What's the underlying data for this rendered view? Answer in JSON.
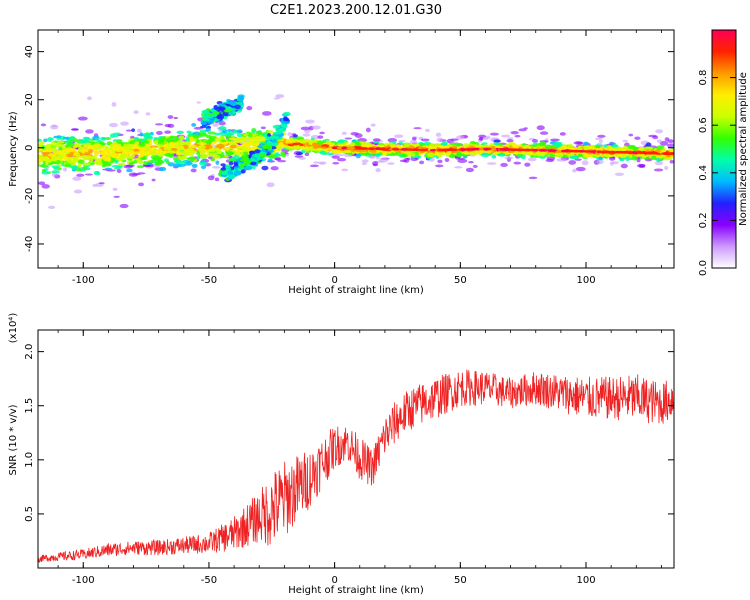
{
  "figure": {
    "title": "C2E1.2023.200.12.01.G30"
  },
  "chart_data": [
    {
      "type": "heatmap",
      "xlabel": "Height of straight line (km)",
      "ylabel": "Frequency (Hz)",
      "xlim": [
        -118,
        135
      ],
      "ylim": [
        -50,
        49
      ],
      "x_ticks": [
        -100,
        -50,
        0,
        50,
        100
      ],
      "x_tick_labels": [
        "-100",
        "-50",
        "0",
        "50",
        "100"
      ],
      "y_ticks": [
        -40,
        -20,
        0,
        20,
        40
      ],
      "y_tick_labels": [
        "-40",
        "-20",
        "0",
        "20",
        "40"
      ],
      "grid": false,
      "colorbar": {
        "label": "Normalized spectral amplitude",
        "range": [
          0,
          1
        ],
        "ticks": [
          0.0,
          0.2,
          0.4,
          0.6,
          0.8
        ],
        "tick_labels": [
          "0.0",
          "0.2",
          "0.4",
          "0.6",
          "0.8"
        ],
        "colors": [
          "#ffffff",
          "#cc99ff",
          "#8800ff",
          "#2222ff",
          "#00bbff",
          "#00ffaa",
          "#33ff00",
          "#ccff00",
          "#ffee00",
          "#ff9900",
          "#ff2200",
          "#ff0055"
        ]
      },
      "ridge": {
        "description_points_x": [
          -118,
          -100,
          -80,
          -60,
          -40,
          -20,
          0,
          20,
          40,
          60,
          80,
          100,
          120,
          135
        ],
        "center_freq": [
          -3,
          -2.5,
          -1.5,
          0,
          1,
          2,
          0,
          -0.5,
          -1,
          -0.5,
          -1,
          -1.5,
          -2,
          -2.5
        ]
      },
      "branches": [
        {
          "x": [
            -52,
            -45,
            -40,
            -37
          ],
          "y": [
            12,
            15,
            17,
            19
          ]
        },
        {
          "x": [
            -45,
            -38,
            -30,
            -24,
            -19
          ],
          "y": [
            -11,
            -8,
            -3,
            3,
            12
          ]
        }
      ]
    },
    {
      "type": "line",
      "xlabel": "Height of straight line (km)",
      "ylabel": "SNR (10 * v/v)",
      "y_multiplier_label": "(x10⁴)",
      "xlim": [
        -118,
        135
      ],
      "ylim": [
        0.0,
        2.2
      ],
      "x_ticks": [
        -100,
        -50,
        0,
        50,
        100
      ],
      "x_tick_labels": [
        "-100",
        "-50",
        "0",
        "50",
        "100"
      ],
      "y_ticks": [
        0.5,
        1.0,
        1.5,
        2.0
      ],
      "y_tick_labels": [
        "0.5",
        "1.0",
        "1.5",
        "2.0"
      ],
      "grid": false,
      "series": [
        {
          "color": "#ee2222",
          "x": [
            -118,
            -110,
            -100,
            -90,
            -80,
            -70,
            -60,
            -50,
            -40,
            -30,
            -25,
            -20,
            -15,
            -10,
            -5,
            0,
            5,
            10,
            15,
            20,
            25,
            30,
            40,
            50,
            60,
            70,
            80,
            90,
            100,
            110,
            120,
            130,
            135
          ],
          "y": [
            0.08,
            0.1,
            0.12,
            0.16,
            0.18,
            0.18,
            0.2,
            0.22,
            0.3,
            0.45,
            0.5,
            0.6,
            0.7,
            0.8,
            0.95,
            1.1,
            1.15,
            1.0,
            0.9,
            1.2,
            1.35,
            1.45,
            1.55,
            1.65,
            1.65,
            1.6,
            1.65,
            1.6,
            1.55,
            1.55,
            1.55,
            1.5,
            1.55
          ],
          "noise": [
            0.04,
            0.05,
            0.06,
            0.08,
            0.08,
            0.09,
            0.1,
            0.12,
            0.2,
            0.3,
            0.45,
            0.45,
            0.4,
            0.35,
            0.3,
            0.25,
            0.22,
            0.25,
            0.22,
            0.25,
            0.25,
            0.25,
            0.25,
            0.22,
            0.2,
            0.18,
            0.2,
            0.22,
            0.25,
            0.25,
            0.28,
            0.25,
            0.25
          ]
        }
      ]
    }
  ]
}
